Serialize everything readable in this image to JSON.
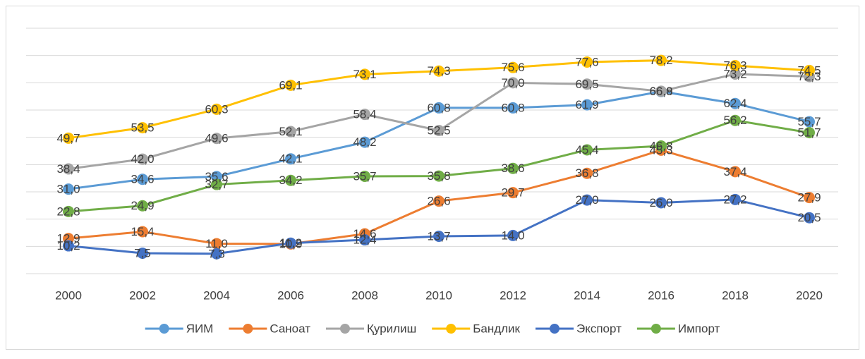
{
  "chart_data": {
    "type": "line",
    "categories": [
      "2000",
      "2002",
      "2004",
      "2006",
      "2008",
      "2010",
      "2012",
      "2014",
      "2016",
      "2018",
      "2020"
    ],
    "ylim": [
      0,
      90
    ],
    "yticks": [
      0,
      10,
      20,
      30,
      40,
      50,
      60,
      70,
      80,
      90
    ],
    "grid": true,
    "legend": "bottom",
    "series": [
      {
        "name": "ЯИМ",
        "color": "#5b9bd5",
        "values": [
          31.0,
          34.6,
          35.6,
          42.1,
          48.2,
          60.8,
          60.8,
          61.9,
          66.8,
          62.4,
          55.7
        ],
        "value_labels": [
          "31,0",
          "34,6",
          "35,6",
          "42,1",
          "48,2",
          "60,8",
          "60,8",
          "61,9",
          "66,8",
          "62,4",
          "55,7"
        ]
      },
      {
        "name": "Саноат",
        "color": "#ed7d31",
        "values": [
          12.9,
          15.4,
          11.0,
          10.9,
          14.6,
          26.6,
          29.7,
          36.8,
          45.3,
          37.4,
          27.9
        ],
        "value_labels": [
          "12,9",
          "15,4",
          "11,0",
          "10,9",
          "14,6",
          "26,6",
          "29,7",
          "36,8",
          "45,3",
          "37,4",
          "27,9"
        ]
      },
      {
        "name": "Қурилиш",
        "color": "#a5a5a5",
        "values": [
          38.4,
          42.0,
          49.6,
          52.1,
          58.4,
          52.5,
          70.0,
          69.5,
          66.9,
          73.2,
          72.3
        ],
        "value_labels": [
          "38,4",
          "42,0",
          "49,6",
          "52,1",
          "58,4",
          "52,5",
          "70,0",
          "69,5",
          "66,9",
          "73,2",
          "72,3"
        ]
      },
      {
        "name": "Бандлик",
        "color": "#ffc000",
        "values": [
          49.7,
          53.5,
          60.3,
          69.1,
          73.1,
          74.3,
          75.6,
          77.6,
          78.2,
          76.3,
          74.5
        ],
        "value_labels": [
          "49,7",
          "53,5",
          "60,3",
          "69,1",
          "73,1",
          "74,3",
          "75,6",
          "77,6",
          "78,2",
          "76,3",
          "74,5"
        ]
      },
      {
        "name": "Экспорт",
        "color": "#4472c4",
        "values": [
          10.2,
          7.5,
          7.3,
          11.2,
          12.4,
          13.7,
          14.0,
          27.0,
          26.0,
          27.2,
          20.5
        ],
        "value_labels": [
          "10,2",
          "7,5",
          "7,3",
          "11,2",
          "12,4",
          "13,7",
          "14,0",
          "27,0",
          "26,0",
          "27,2",
          "20,5"
        ]
      },
      {
        "name": "Импорт",
        "color": "#70ad47",
        "values": [
          22.8,
          24.9,
          32.7,
          34.2,
          35.7,
          35.8,
          38.6,
          45.4,
          46.8,
          56.2,
          51.7
        ],
        "value_labels": [
          "22,8",
          "24,9",
          "32,7",
          "34,2",
          "35,7",
          "35,8",
          "38,6",
          "45,4",
          "46,8",
          "56,2",
          "51,7"
        ]
      }
    ]
  }
}
